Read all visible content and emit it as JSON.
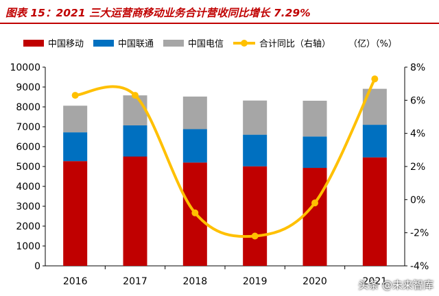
{
  "title": "图表 15：2021 三大运营商移动业务合计营收同比增长 7.29%",
  "watermark": "头条 @未来智库",
  "chart_data": {
    "type": "bar",
    "stacked": true,
    "categories": [
      "2016",
      "2017",
      "2018",
      "2019",
      "2020",
      "2021"
    ],
    "ylim": [
      0,
      10000
    ],
    "y_ticks": [
      0,
      1000,
      2000,
      3000,
      4000,
      5000,
      6000,
      7000,
      8000,
      9000,
      10000
    ],
    "y2lim": [
      -4,
      8
    ],
    "y2_ticks": [
      "-4%",
      "-2%",
      "0%",
      "2%",
      "4%",
      "6%",
      "8%"
    ],
    "legend_position": "top",
    "legend_unit": "（亿）（%）",
    "grid": false,
    "series": [
      {
        "name": "中国移动",
        "color": "#C00000",
        "values": [
          5270,
          5500,
          5200,
          5010,
          4930,
          5460
        ]
      },
      {
        "name": "中国联通",
        "color": "#0070C0",
        "values": [
          1450,
          1570,
          1680,
          1590,
          1580,
          1640
        ]
      },
      {
        "name": "中国电信",
        "color": "#A6A6A6",
        "values": [
          1340,
          1510,
          1640,
          1720,
          1800,
          1810
        ]
      }
    ],
    "line_series": {
      "name": "合计同比（右轴）",
      "color": "#FFC000",
      "axis": "right",
      "values": [
        6.3,
        6.3,
        -0.8,
        -2.2,
        -0.2,
        7.29
      ]
    }
  }
}
